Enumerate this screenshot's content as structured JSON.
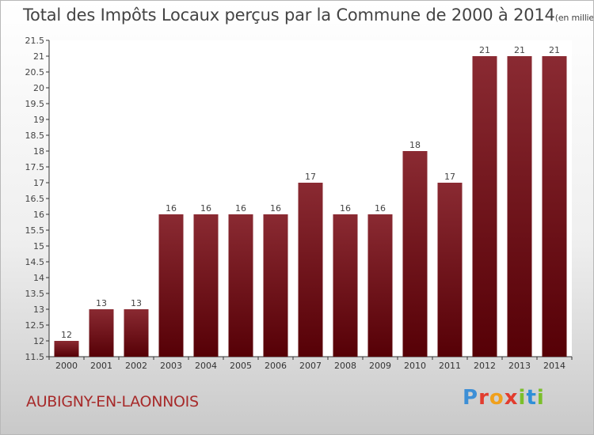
{
  "chart_data": {
    "type": "bar",
    "title": "Total des Impôts Locaux perçus par la Commune de 2000 à 2014",
    "unit_label": "(en milliers d'€)",
    "categories": [
      "2000",
      "2001",
      "2002",
      "2003",
      "2004",
      "2005",
      "2006",
      "2007",
      "2008",
      "2009",
      "2010",
      "2011",
      "2012",
      "2013",
      "2014"
    ],
    "values": [
      12,
      13,
      13,
      16,
      16,
      16,
      16,
      17,
      16,
      16,
      18,
      17,
      21,
      21,
      21
    ],
    "labels": [
      "12",
      "13",
      "13",
      "16",
      "16",
      "16",
      "16",
      "17",
      "16",
      "16",
      "18",
      "17",
      "21",
      "21",
      "21"
    ],
    "ylim": [
      11.5,
      21.5
    ],
    "yticks": [
      "11.5",
      "12",
      "12.5",
      "13",
      "13.5",
      "14",
      "14.5",
      "15",
      "15.5",
      "16",
      "16.5",
      "17",
      "17.5",
      "18",
      "18.5",
      "19",
      "19.5",
      "20",
      "20.5",
      "21",
      "21.5"
    ],
    "xlabel": "",
    "ylabel": "",
    "grid": false,
    "bar_color": "#7a1c22"
  },
  "footer": {
    "commune": "AUBIGNY-EN-LAONNOIS",
    "logo_letters": [
      "P",
      "r",
      "o",
      "x",
      "i",
      "t",
      "i"
    ],
    "logo_colors": [
      "#3d8fd6",
      "#e23c2e",
      "#f0a01c",
      "#e23c2e",
      "#7bbf2b",
      "#2f8fd8",
      "#7bbf2b"
    ]
  }
}
